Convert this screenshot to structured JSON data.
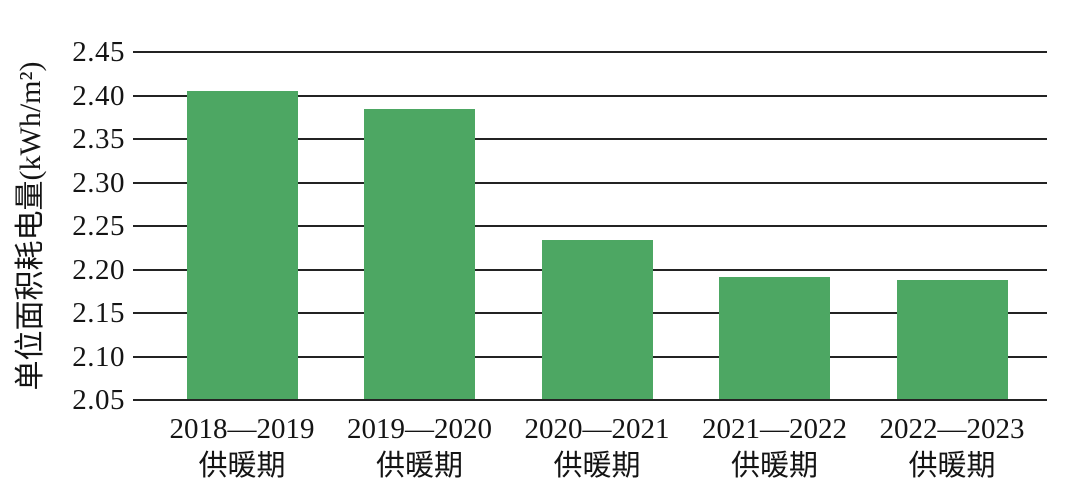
{
  "chart_data": {
    "type": "bar",
    "title": "",
    "xlabel": "",
    "ylabel": "单位面积耗电量(kWh/m²)",
    "categories": [
      "2018—2019",
      "2019—2020",
      "2020—2021",
      "2021—2022",
      "2022—2023"
    ],
    "category_suffix": "供暖期",
    "values": [
      2.405,
      2.384,
      2.234,
      2.191,
      2.188
    ],
    "ylim": [
      2.05,
      2.45
    ],
    "ytick_step": 0.05,
    "ytick_labels": [
      "2.05",
      "2.10",
      "2.15",
      "2.20",
      "2.25",
      "2.30",
      "2.35",
      "2.40",
      "2.45"
    ],
    "grid": true,
    "legend": false,
    "bar_color": "#4DA763",
    "line_color": "#232323",
    "text_color": "#141414",
    "background": "#ffffff"
  }
}
